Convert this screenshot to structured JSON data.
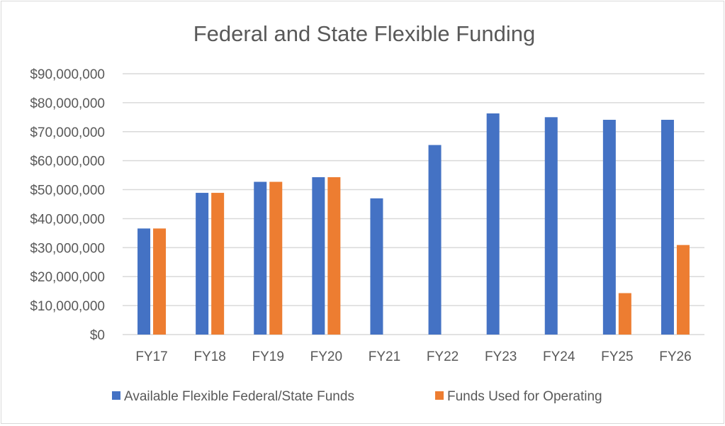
{
  "chart_data": {
    "type": "bar",
    "title": "Federal and State Flexible Funding",
    "xlabel": "",
    "ylabel": "",
    "categories": [
      "FY17",
      "FY18",
      "FY19",
      "FY20",
      "FY21",
      "FY22",
      "FY23",
      "FY24",
      "FY25",
      "FY26"
    ],
    "series": [
      {
        "name": "Available Flexible Federal/State Funds",
        "color": "#4472C4",
        "values": [
          36600000,
          48900000,
          52700000,
          54300000,
          47000000,
          65400000,
          76300000,
          75000000,
          74100000,
          74100000
        ]
      },
      {
        "name": "Funds Used for Operating",
        "color": "#ED7D31",
        "values": [
          36600000,
          48900000,
          52700000,
          54300000,
          0,
          0,
          0,
          0,
          14300000,
          30900000
        ]
      }
    ],
    "ylim": [
      0,
      90000000
    ],
    "yticks": [
      "$0",
      "$10,000,000",
      "$20,000,000",
      "$30,000,000",
      "$40,000,000",
      "$50,000,000",
      "$60,000,000",
      "$70,000,000",
      "$80,000,000",
      "$90,000,000"
    ],
    "grid": true,
    "legend_position": "bottom"
  }
}
